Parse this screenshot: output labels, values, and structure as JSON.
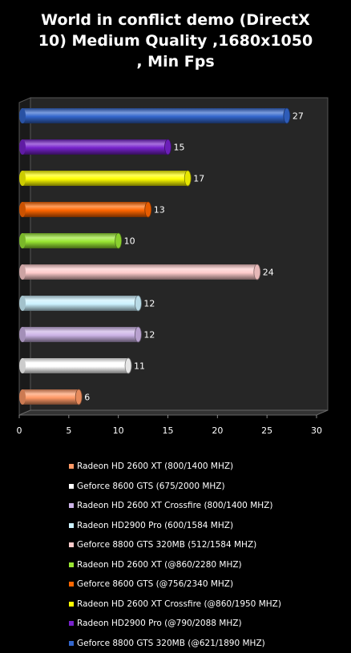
{
  "chart_data": {
    "type": "bar",
    "orientation": "horizontal",
    "title_lines": [
      "World in conflict  demo (DirectX",
      "10)  Medium Quality ,1680x1050",
      ", Min Fps"
    ],
    "xlabel": "",
    "ylabel": "",
    "xlim": [
      0,
      30
    ],
    "x_ticks": [
      "0",
      "5",
      "10",
      "15",
      "20",
      "25",
      "30"
    ],
    "grid": false,
    "legend_position": "bottom",
    "series": [
      {
        "name": "Radeon HD 2600 XT (800/1400 MHZ)",
        "value": 6,
        "color": "#FF9966"
      },
      {
        "name": "Geforce 8600 GTS (675/2000 MHZ)",
        "value": 11,
        "color": "#FFFFFF"
      },
      {
        "name": "Radeon HD 2600 XT Crossfire (800/1400 MHZ)",
        "value": 12,
        "color": "#CCB3E6"
      },
      {
        "name": "Radeon HD2900 Pro (600/1584 MHZ)",
        "value": 12,
        "color": "#CCF2FF"
      },
      {
        "name": "Geforce 8800 GTS 320MB (512/1584 MHZ)",
        "value": 24,
        "color": "#FFCCCC"
      },
      {
        "name": "Radeon HD 2600 XT (@860/2280 MHZ)",
        "value": 10,
        "color": "#99E633"
      },
      {
        "name": "Geforce 8600 GTS (@756/2340 MHZ)",
        "value": 13,
        "color": "#FF6600"
      },
      {
        "name": "Radeon HD 2600 XT Crossfire (@860/1950 MHZ)",
        "value": 17,
        "color": "#FFFF00"
      },
      {
        "name": "Radeon HD2900 Pro (@790/2088 MHZ)",
        "value": 15,
        "color": "#7722CC"
      },
      {
        "name": "Geforce 8800 GTS 320MB (@621/1890 MHZ)",
        "value": 27,
        "color": "#3366CC"
      }
    ]
  }
}
